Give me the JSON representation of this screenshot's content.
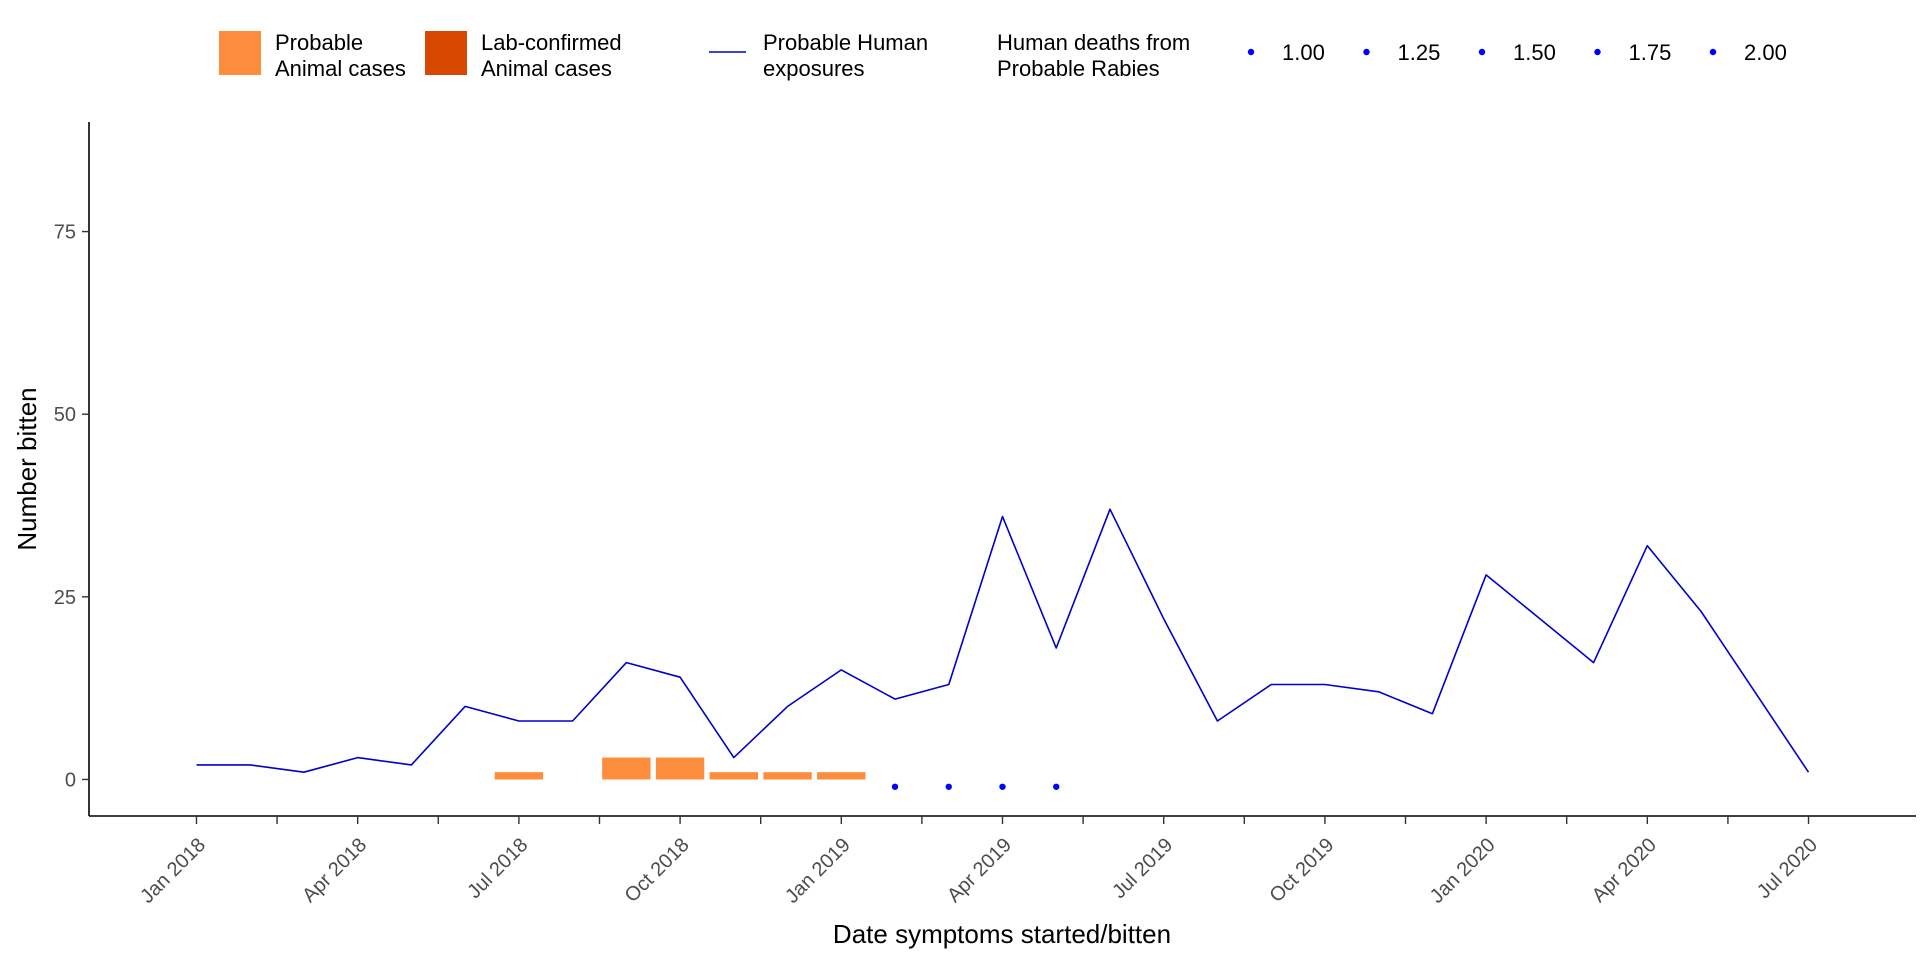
{
  "chart_data": {
    "type": "line",
    "xlabel": "Date symptoms started/bitten",
    "ylabel": "Number bitten",
    "ylim": [
      -5,
      90
    ],
    "y_ticks": [
      0,
      25,
      50,
      75
    ],
    "x_ticks": [
      {
        "label": "Jan 2018",
        "month": "2018-01"
      },
      {
        "label": "Apr 2018",
        "month": "2018-04"
      },
      {
        "label": "Jul 2018",
        "month": "2018-07"
      },
      {
        "label": "Oct 2018",
        "month": "2018-10"
      },
      {
        "label": "Jan 2019",
        "month": "2019-01"
      },
      {
        "label": "Apr 2019",
        "month": "2019-04"
      },
      {
        "label": "Jul 2019",
        "month": "2019-07"
      },
      {
        "label": "Oct 2019",
        "month": "2019-10"
      },
      {
        "label": "Jan 2020",
        "month": "2020-01"
      },
      {
        "label": "Apr 2020",
        "month": "2020-04"
      },
      {
        "label": "Jul 2020",
        "month": "2020-07"
      }
    ],
    "xlim": [
      "2017-11",
      "2020-09"
    ],
    "grid": false,
    "legend_position": "top",
    "legend": {
      "probable_animal": "Probable\nAnimal cases",
      "lab_confirmed_animal": "Lab-confirmed\nAnimal cases",
      "probable_human_exposures": "Probable Human\nexposures",
      "human_deaths_title": "Human deaths from\nProbable Rabies",
      "death_size_labels": [
        "1.00",
        "1.25",
        "1.50",
        "1.75",
        "2.00"
      ]
    },
    "colors": {
      "probable_animal": "#fd8d3c",
      "lab_confirmed_animal": "#d94801",
      "line": "#0000cc",
      "deaths": "#0000ff"
    },
    "series": [
      {
        "name": "Probable Human exposures",
        "type": "line",
        "points": [
          {
            "month": "2018-01",
            "value": 2
          },
          {
            "month": "2018-02",
            "value": 2
          },
          {
            "month": "2018-03",
            "value": 1
          },
          {
            "month": "2018-04",
            "value": 3
          },
          {
            "month": "2018-05",
            "value": 2
          },
          {
            "month": "2018-06",
            "value": 10
          },
          {
            "month": "2018-07",
            "value": 8
          },
          {
            "month": "2018-08",
            "value": 8
          },
          {
            "month": "2018-09",
            "value": 16
          },
          {
            "month": "2018-10",
            "value": 14
          },
          {
            "month": "2018-11",
            "value": 3
          },
          {
            "month": "2018-12",
            "value": 10
          },
          {
            "month": "2019-01",
            "value": 15
          },
          {
            "month": "2019-02",
            "value": 11
          },
          {
            "month": "2019-03",
            "value": 13
          },
          {
            "month": "2019-04",
            "value": 36
          },
          {
            "month": "2019-05",
            "value": 18
          },
          {
            "month": "2019-06",
            "value": 37
          },
          {
            "month": "2019-07",
            "value": 22
          },
          {
            "month": "2019-08",
            "value": 8
          },
          {
            "month": "2019-09",
            "value": 13
          },
          {
            "month": "2019-10",
            "value": 13
          },
          {
            "month": "2019-11",
            "value": 12
          },
          {
            "month": "2019-12",
            "value": 9
          },
          {
            "month": "2020-01",
            "value": 28
          },
          {
            "month": "2020-02",
            "value": 22
          },
          {
            "month": "2020-03",
            "value": 16
          },
          {
            "month": "2020-04",
            "value": 32
          },
          {
            "month": "2020-05",
            "value": 23
          },
          {
            "month": "2020-06",
            "value": 12
          },
          {
            "month": "2020-07",
            "value": 1
          }
        ]
      },
      {
        "name": "Probable Animal cases",
        "type": "bar",
        "points": [
          {
            "month": "2018-07",
            "value": 1
          },
          {
            "month": "2018-09",
            "value": 3
          },
          {
            "month": "2018-10",
            "value": 3
          },
          {
            "month": "2018-11",
            "value": 1
          },
          {
            "month": "2018-12",
            "value": 1
          },
          {
            "month": "2019-01",
            "value": 1
          }
        ]
      },
      {
        "name": "Lab-confirmed Animal cases",
        "type": "bar",
        "points": []
      },
      {
        "name": "Human deaths from Probable Rabies",
        "type": "scatter",
        "y_position": -1,
        "points": [
          {
            "month": "2019-02",
            "value": 1
          },
          {
            "month": "2019-03",
            "value": 1
          },
          {
            "month": "2019-04",
            "value": 1
          },
          {
            "month": "2019-05",
            "value": 1
          }
        ]
      }
    ]
  }
}
